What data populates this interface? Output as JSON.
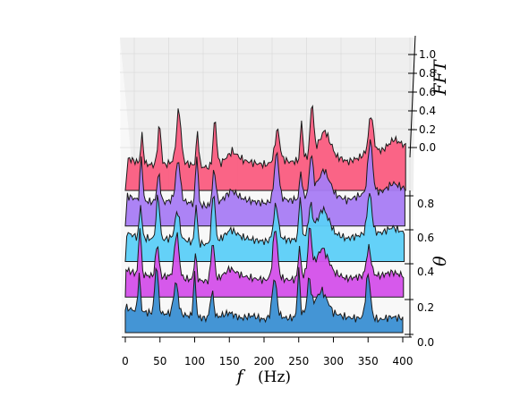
{
  "chart_data": {
    "type": "area",
    "style": "3d waterfall (stacked spectra)",
    "xlabel": {
      "var": "f",
      "unit": "(Hz)"
    },
    "ylabel": "θ",
    "zlabel": "FFT",
    "xlim": [
      0,
      400
    ],
    "ylim": [
      0,
      1.0
    ],
    "zlim": [
      0,
      1.0
    ],
    "x_ticks": [
      "0",
      "50",
      "100",
      "150",
      "200",
      "250",
      "300",
      "350",
      "400"
    ],
    "y_ticks": [
      "0.0",
      "0.2",
      "0.4",
      "0.6",
      "0.8"
    ],
    "z_ticks": [
      "0.0",
      "0.2",
      "0.4",
      "0.6",
      "0.8",
      "1.0"
    ],
    "grid": true,
    "series_theta": [
      0.2,
      0.4,
      0.6,
      0.8,
      1.0
    ],
    "peaks_hz": [
      20,
      45,
      73,
      100,
      125,
      215,
      250,
      265,
      350
    ],
    "series": [
      {
        "theta": 0.2,
        "color": "#3a8fd3",
        "values": [
          0.35,
          0.3,
          0.28,
          0.26,
          0.27,
          0.25,
          0.22,
          0.2,
          0.22,
          0.28,
          0.2,
          0.24,
          0.18,
          0.25,
          0.2,
          0.22,
          0.35,
          0.6,
          0.28,
          0.22,
          0.2,
          0.22,
          0.18,
          0.22,
          0.2
        ]
      },
      {
        "theta": 0.4,
        "color": "#d450ea",
        "values": [
          0.38,
          0.32,
          0.3,
          0.28,
          0.3,
          0.26,
          0.24,
          0.22,
          0.26,
          0.4,
          0.3,
          0.26,
          0.24,
          0.28,
          0.24,
          0.26,
          0.4,
          0.7,
          0.35,
          0.26,
          0.28,
          0.32,
          0.3,
          0.35,
          0.3
        ]
      },
      {
        "theta": 0.6,
        "color": "#5ccff8",
        "values": [
          0.4,
          0.34,
          0.32,
          0.3,
          0.34,
          0.3,
          0.26,
          0.24,
          0.3,
          0.45,
          0.34,
          0.3,
          0.28,
          0.34,
          0.3,
          0.32,
          0.44,
          0.75,
          0.4,
          0.32,
          0.36,
          0.42,
          0.4,
          0.48,
          0.4
        ]
      },
      {
        "theta": 0.8,
        "color": "#a87cf4",
        "values": [
          0.42,
          0.36,
          0.34,
          0.32,
          0.38,
          0.34,
          0.3,
          0.28,
          0.34,
          0.5,
          0.38,
          0.34,
          0.32,
          0.4,
          0.36,
          0.38,
          0.48,
          0.8,
          0.44,
          0.36,
          0.42,
          0.5,
          0.48,
          0.6,
          0.52
        ]
      },
      {
        "theta": 1.0,
        "color": "#fa5c80",
        "values": [
          0.45,
          0.38,
          0.36,
          0.34,
          0.42,
          0.38,
          0.34,
          0.32,
          0.38,
          0.55,
          0.42,
          0.38,
          0.36,
          0.46,
          0.4,
          0.42,
          0.52,
          0.85,
          0.48,
          0.4,
          0.46,
          0.58,
          0.56,
          0.72,
          0.62
        ]
      }
    ]
  }
}
